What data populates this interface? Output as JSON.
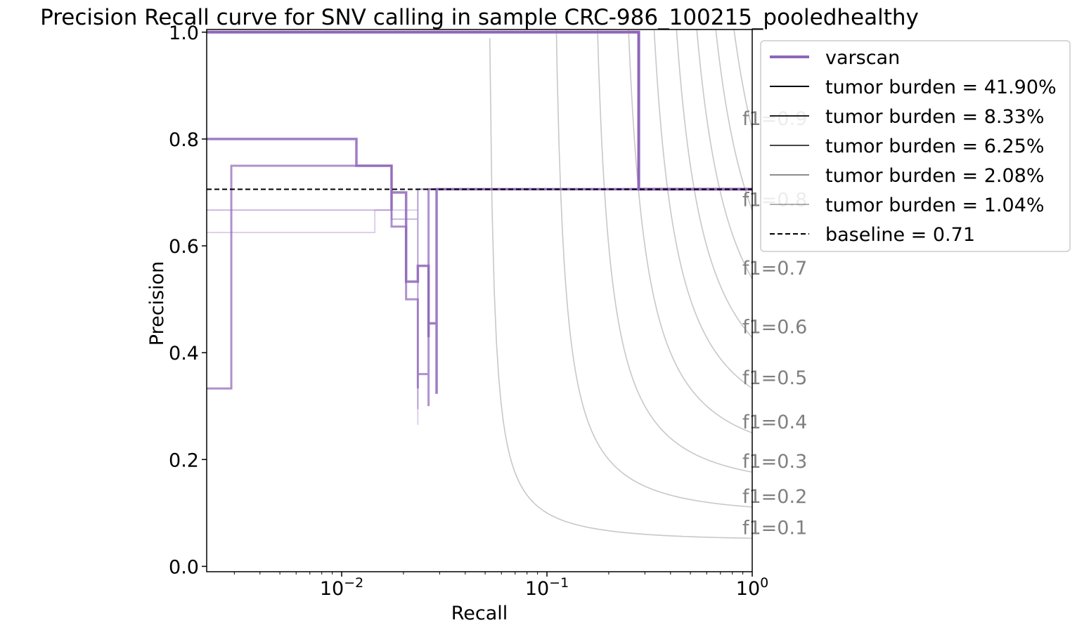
{
  "chart_data": {
    "type": "line",
    "title": "Precision Recall curve for SNV calling in sample CRC-986_100215_pooledhealthy",
    "xlabel": "Recall",
    "ylabel": "Precision",
    "xscale": "log",
    "xlim": [
      0.0022,
      1.0
    ],
    "ylim": [
      -0.01,
      1.005
    ],
    "x_ticks": [
      {
        "value": 0.01,
        "base": "10",
        "exp": "−2"
      },
      {
        "value": 0.1,
        "base": "10",
        "exp": "−1"
      },
      {
        "value": 1,
        "base": "10",
        "exp": "0"
      }
    ],
    "y_ticks": [
      {
        "value": 0.0,
        "label": "0.0"
      },
      {
        "value": 0.2,
        "label": "0.2"
      },
      {
        "value": 0.4,
        "label": "0.4"
      },
      {
        "value": 0.6,
        "label": "0.6"
      },
      {
        "value": 0.8,
        "label": "0.8"
      },
      {
        "value": 1.0,
        "label": "1.0"
      }
    ],
    "colors": {
      "varscan": "#8f66ba",
      "f1": "#c8c8c8",
      "f1_label": "#808080",
      "baseline": "#000000"
    },
    "series": [
      {
        "name": "tumor burden = 41.90%",
        "opacity": 1.0,
        "width": 4,
        "points": [
          [
            0.0022,
            1.0
          ],
          [
            0.28,
            1.0
          ],
          [
            0.28,
            0.706
          ],
          [
            1.0,
            0.706
          ]
        ]
      },
      {
        "name": "tumor burden = 8.33%",
        "opacity": 0.85,
        "width": 3.5,
        "points": [
          [
            0.0022,
            0.8
          ],
          [
            0.0118,
            0.8
          ],
          [
            0.0118,
            0.75
          ],
          [
            0.0175,
            0.75
          ],
          [
            0.0175,
            0.667
          ],
          [
            0.0175,
            0.7
          ],
          [
            0.0206,
            0.7
          ],
          [
            0.0206,
            0.533
          ],
          [
            0.0235,
            0.533
          ],
          [
            0.0235,
            0.5625
          ],
          [
            0.0265,
            0.5625
          ],
          [
            0.0265,
            0.429
          ],
          [
            0.0265,
            0.455
          ],
          [
            0.029,
            0.455
          ],
          [
            0.029,
            0.323
          ],
          [
            0.029,
            0.706
          ],
          [
            1.0,
            0.706
          ]
        ]
      },
      {
        "name": "tumor burden = 6.25%",
        "opacity": 0.72,
        "width": 3,
        "points": [
          [
            0.0022,
            0.333
          ],
          [
            0.0029,
            0.333
          ],
          [
            0.0029,
            0.75
          ],
          [
            0.0175,
            0.75
          ],
          [
            0.0175,
            0.636
          ],
          [
            0.0206,
            0.636
          ],
          [
            0.0206,
            0.5
          ],
          [
            0.0235,
            0.5
          ],
          [
            0.0235,
            0.333
          ],
          [
            0.0235,
            0.36
          ],
          [
            0.0265,
            0.36
          ],
          [
            0.0265,
            0.3
          ],
          [
            0.0265,
            0.706
          ],
          [
            1.0,
            0.706
          ]
        ]
      },
      {
        "name": "tumor burden = 2.08%",
        "opacity": 0.45,
        "width": 2,
        "points": [
          [
            0.0022,
            0.667
          ],
          [
            0.0175,
            0.667
          ],
          [
            0.0175,
            0.65
          ],
          [
            0.0235,
            0.65
          ],
          [
            0.0235,
            0.294
          ],
          [
            0.0235,
            0.706
          ],
          [
            1.0,
            0.706
          ]
        ]
      },
      {
        "name": "tumor burden = 1.04%",
        "opacity": 0.3,
        "width": 2,
        "points": [
          [
            0.0022,
            0.625
          ],
          [
            0.0145,
            0.625
          ],
          [
            0.0145,
            0.667
          ],
          [
            0.0235,
            0.667
          ],
          [
            0.0235,
            0.265
          ],
          [
            0.0235,
            0.706
          ],
          [
            1.0,
            0.706
          ]
        ]
      }
    ],
    "baseline": {
      "value": 0.7059,
      "label": "baseline = 0.71"
    },
    "f1_curves": [
      {
        "f1": 0.1,
        "label": "f1=0.1"
      },
      {
        "f1": 0.2,
        "label": "f1=0.2"
      },
      {
        "f1": 0.3,
        "label": "f1=0.3"
      },
      {
        "f1": 0.4,
        "label": "f1=0.4"
      },
      {
        "f1": 0.5,
        "label": "f1=0.5"
      },
      {
        "f1": 0.6,
        "label": "f1=0.6"
      },
      {
        "f1": 0.7,
        "label": "f1=0.7"
      },
      {
        "f1": 0.8,
        "label": "f1=0.8"
      },
      {
        "f1": 0.9,
        "label": "f1=0.9"
      }
    ],
    "legend": {
      "placement": "outside-right-top",
      "entries": [
        {
          "label": "varscan",
          "style": "solid",
          "color": "#8f66ba",
          "opacity": 1.0
        },
        {
          "label": "tumor burden = 41.90%",
          "style": "solid",
          "color": "#000000",
          "opacity": 1.0
        },
        {
          "label": "tumor burden = 8.33%",
          "style": "solid",
          "color": "#000000",
          "opacity": 0.85
        },
        {
          "label": "tumor burden = 6.25%",
          "style": "solid",
          "color": "#000000",
          "opacity": 0.72
        },
        {
          "label": "tumor burden = 2.08%",
          "style": "solid",
          "color": "#000000",
          "opacity": 0.45
        },
        {
          "label": "tumor burden = 1.04%",
          "style": "solid",
          "color": "#000000",
          "opacity": 0.3
        },
        {
          "label": "baseline = 0.71",
          "style": "dashed",
          "color": "#000000",
          "opacity": 1.0
        }
      ]
    }
  }
}
